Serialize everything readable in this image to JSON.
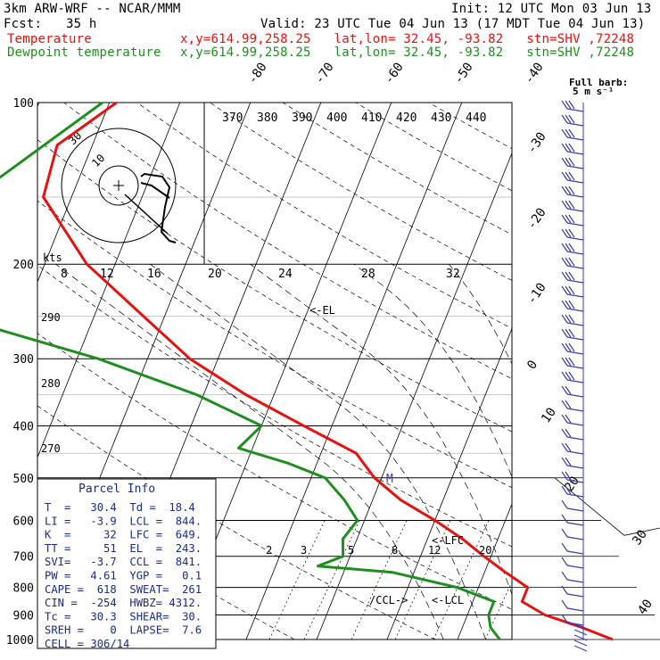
{
  "header": {
    "model": "3km ARW-WRF -- NCAR/MMM",
    "init": "Init: 12 UTC Mon 03 Jun 13",
    "fcst_label": "Fcst:",
    "fcst_value": "35 h",
    "valid": "Valid: 23 UTC Tue 04 Jun 13 (17 MDT Tue 04 Jun 13)",
    "temp_label": "Temperature",
    "dew_label": "Dewpoint temperature",
    "location": "x,y=614.99,258.25   lat,lon= 32.45, -93.82   stn=SHV ,72248",
    "barb_title_1": "Full barb:",
    "barb_title_2": "5 m s⁻¹"
  },
  "colors": {
    "temperature": "#e8110f",
    "dewpoint": "#1e8f1e",
    "header_red": "#e8110f",
    "header_green": "#1e8f1e",
    "parcel_text": "#1a2a8a",
    "barb": "#3a3ab0"
  },
  "chart_data": {
    "type": "line",
    "pressure_levels": [
      100,
      200,
      300,
      400,
      500,
      600,
      700,
      800,
      900,
      1000
    ],
    "isotherm_labels": [
      "-80",
      "-70",
      "-60",
      "-50",
      "-40",
      "-30",
      "-20",
      "-10",
      "0",
      "10",
      "20",
      "30",
      "40"
    ],
    "theta_labels": [
      "370",
      "380",
      "390",
      "400",
      "410",
      "420",
      "430",
      "440"
    ],
    "dry_adiabat_labels": [
      "290",
      "280",
      "270"
    ],
    "mixing_ratio_labels": [
      "2",
      "3",
      "5",
      "8",
      "12",
      "20"
    ],
    "hodograph": {
      "speed_labels": [
        "8",
        "12",
        "16",
        "20",
        "24",
        "28",
        "32"
      ],
      "units": "kts",
      "ring_labels": [
        "30",
        "10"
      ]
    },
    "annotations": {
      "el": "<-EL",
      "lfc": "<-LFC",
      "ccl": "/CCL->",
      "lcl": "<-LCL"
    },
    "series": [
      {
        "name": "Temperature",
        "points": [
          [
            100,
            -69
          ],
          [
            120,
            -75
          ],
          [
            150,
            -74
          ],
          [
            200,
            -64
          ],
          [
            250,
            -53
          ],
          [
            300,
            -44
          ],
          [
            350,
            -34
          ],
          [
            400,
            -24
          ],
          [
            450,
            -15
          ],
          [
            500,
            -11
          ],
          [
            550,
            -6
          ],
          [
            600,
            0
          ],
          [
            650,
            5
          ],
          [
            700,
            9
          ],
          [
            750,
            13
          ],
          [
            800,
            17
          ],
          [
            850,
            17
          ],
          [
            900,
            21
          ],
          [
            950,
            27
          ],
          [
            1000,
            32
          ]
        ]
      },
      {
        "name": "Dewpoint temperature",
        "points": [
          [
            100,
            -71
          ],
          [
            150,
            -84
          ],
          [
            200,
            -87
          ],
          [
            240,
            -91
          ],
          [
            250,
            -80
          ],
          [
            300,
            -57
          ],
          [
            350,
            -41
          ],
          [
            400,
            -30
          ],
          [
            440,
            -32
          ],
          [
            470,
            -24
          ],
          [
            500,
            -18
          ],
          [
            550,
            -14
          ],
          [
            600,
            -11
          ],
          [
            650,
            -12
          ],
          [
            700,
            -11
          ],
          [
            730,
            -14
          ],
          [
            750,
            -3
          ],
          [
            800,
            7
          ],
          [
            850,
            13
          ],
          [
            900,
            13
          ],
          [
            950,
            14
          ],
          [
            1000,
            16
          ]
        ]
      }
    ]
  },
  "parcel": {
    "title": "Parcel Info",
    "rows": [
      "T  =   30.4  Td =  18.4",
      "LI =   -3.9  LCL =  844.",
      "K  =     32  LFC =  649.",
      "TT =     51  EL  =  243.",
      "SVI=   -3.7  CCL =  841.",
      "PW =   4.61  YGP =   0.1",
      "CAPE =  618  SWEAT=  261",
      "CIN =  -254  HWBZ= 4312.",
      "Tc =   30.3  SHEAR=  30.",
      "SREH =    0  LAPSE=  7.6",
      "CELL = 306/14"
    ]
  }
}
